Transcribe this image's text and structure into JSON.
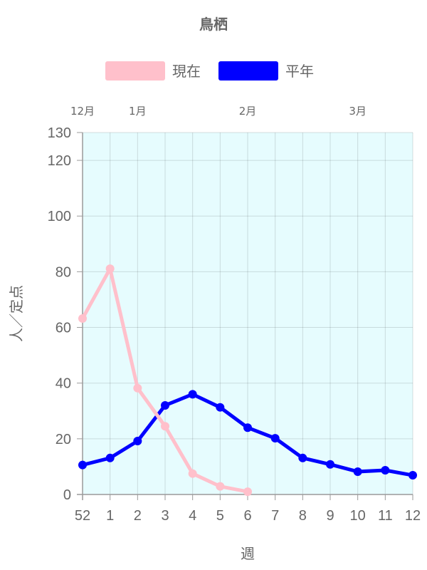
{
  "chart_data": {
    "type": "line",
    "title": "鳥栖",
    "xlabel": "週",
    "ylabel": "人／定点",
    "categories": [
      "52",
      "1",
      "2",
      "3",
      "4",
      "5",
      "6",
      "7",
      "8",
      "9",
      "10",
      "11",
      "12"
    ],
    "month_labels": [
      {
        "label": "12月",
        "at": 0
      },
      {
        "label": "1月",
        "at": 2
      },
      {
        "label": "2月",
        "at": 6
      },
      {
        "label": "3月",
        "at": 10
      }
    ],
    "y_ticks": [
      0,
      20,
      40,
      60,
      80,
      100,
      120,
      130
    ],
    "ylim": [
      0,
      130
    ],
    "grid": true,
    "legend_position": "top",
    "plot_background": "#e6fcfe",
    "series": [
      {
        "name": "現在",
        "color": "#ffc0cb",
        "values": [
          63.2,
          81.1,
          38.2,
          24.5,
          7.5,
          2.9,
          1.0,
          null,
          null,
          null,
          null,
          null,
          null
        ]
      },
      {
        "name": "平年",
        "color": "#0000ff",
        "values": [
          10.6,
          13.1,
          19.2,
          32.0,
          36.0,
          31.3,
          24.0,
          20.2,
          13.1,
          10.8,
          8.2,
          8.7,
          6.9
        ]
      }
    ]
  }
}
